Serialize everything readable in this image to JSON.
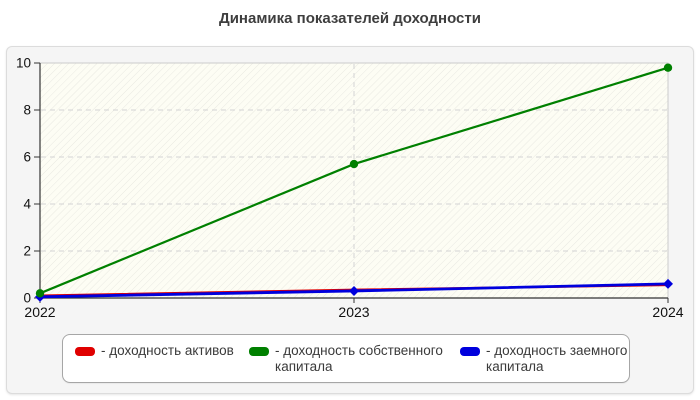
{
  "title": "Динамика показателей доходности",
  "chart_data": {
    "type": "line",
    "title": "Динамика показателей доходности",
    "x": [
      2022,
      2023,
      2024
    ],
    "xticks": [
      "2022",
      "2023",
      "2024"
    ],
    "yticks": [
      0,
      2,
      4,
      6,
      8,
      10
    ],
    "ylim": [
      0,
      10
    ],
    "grid": "dashed",
    "legend_position": "bottom",
    "series": [
      {
        "name": "доходность активов",
        "color": "#e00000",
        "values": [
          0.1,
          0.35,
          0.55
        ]
      },
      {
        "name": "доходность собственного капитала",
        "color": "#008000",
        "values": [
          0.2,
          5.7,
          9.8
        ]
      },
      {
        "name": "доходность заемного капитала",
        "color": "#0000dd",
        "values": [
          0.05,
          0.3,
          0.6
        ]
      }
    ]
  },
  "legend": {
    "items": [
      {
        "label": "- доходность активов",
        "color": "#e00000"
      },
      {
        "label": "- доходность собственного капитала",
        "color": "#008000"
      },
      {
        "label": "- доходность заемного капитала",
        "color": "#0000dd"
      }
    ]
  },
  "colors": {
    "axis": "#333333",
    "tick_text": "#111111",
    "gridline": "#d4d4d4",
    "panel_bg": "#f5f5f5",
    "plot_bg": "#fdfdf4"
  }
}
